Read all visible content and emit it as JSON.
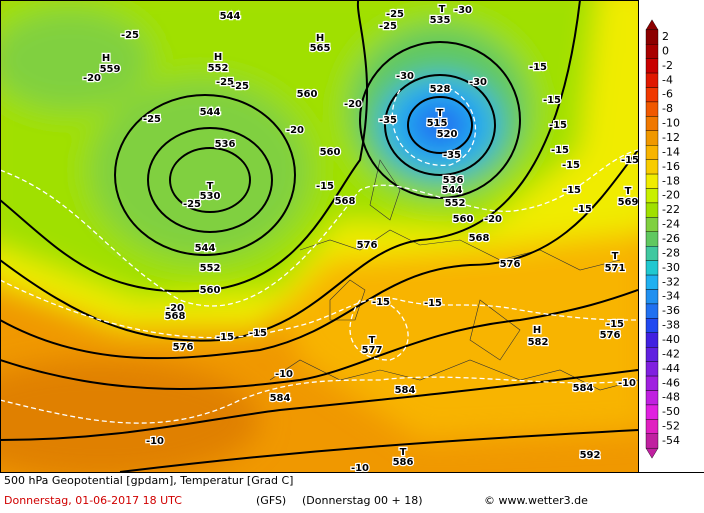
{
  "header": {
    "line1": "500 hPa Geopotential [gpdam], Temperatur [Grad C]",
    "date": "Donnerstag, 01-06-2017  18 UTC",
    "model": "(GFS)",
    "run": "(Donnerstag 00 + 18)",
    "credit": "© www.wetter3.de"
  },
  "scale": {
    "values": [
      2,
      0,
      -2,
      -4,
      -6,
      -8,
      -10,
      -12,
      -14,
      -16,
      -18,
      -20,
      -22,
      -24,
      -26,
      -28,
      -30,
      -32,
      -34,
      -36,
      -38,
      -40,
      -42,
      -44,
      -46,
      -48,
      -50,
      -52,
      -54
    ],
    "colors": [
      "#8c0000",
      "#a80000",
      "#c80000",
      "#e01800",
      "#f03800",
      "#f05800",
      "#f07800",
      "#f09800",
      "#f8b400",
      "#f8cc00",
      "#f0ec00",
      "#c8f000",
      "#a0e000",
      "#80d040",
      "#60c860",
      "#40c8a0",
      "#20c8d0",
      "#20b0f0",
      "#2090f0",
      "#2070f0",
      "#2048f0",
      "#4020e0",
      "#6020e0",
      "#8020e0",
      "#a020e0",
      "#c020e0",
      "#e020e0",
      "#e020c0",
      "#c020a0"
    ]
  },
  "map": {
    "labels": [
      "544",
      "-25",
      "H",
      "559",
      "-20",
      "H",
      "552",
      "-25",
      "-25",
      "544",
      "-25",
      "H",
      "565",
      "560",
      "-20",
      "536",
      "T",
      "530",
      "-25",
      "544",
      "552",
      "560",
      "-20",
      "568",
      "576",
      "-15",
      "-15",
      "-15",
      "560",
      "568",
      "-20",
      "-25",
      "-25",
      "T",
      "535",
      "-30",
      "-30",
      "-30",
      "528",
      "T",
      "515",
      "520",
      "-35",
      "-35",
      "536",
      "544",
      "552",
      "560",
      "-20",
      "568",
      "576",
      "576",
      "-15",
      "-15",
      "T",
      "577",
      "-10",
      "584",
      "584",
      "584",
      "-10",
      "T",
      "586",
      "592",
      "-15",
      "-15",
      "-15",
      "-15",
      "-15",
      "-15",
      "-15",
      "-15",
      "T",
      "569",
      "-15",
      "576",
      "H",
      "582",
      "-10",
      "T",
      "571",
      "-10"
    ]
  }
}
